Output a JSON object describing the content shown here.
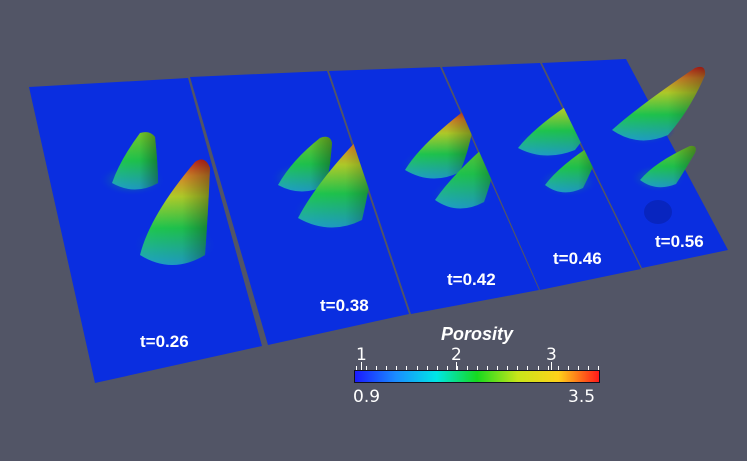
{
  "scene": {
    "background_color": "#525566",
    "field_color": "#0a2ee0",
    "panels": [
      {
        "label": "t=0.26",
        "peaks": 2
      },
      {
        "label": "t=0.38",
        "peaks": 2
      },
      {
        "label": "t=0.42",
        "peaks": 2
      },
      {
        "label": "t=0.46",
        "peaks": 2
      },
      {
        "label": "t=0.56",
        "peaks": 2
      }
    ]
  },
  "colorbar": {
    "title": "Porosity",
    "min_label": "0.9",
    "max_label": "3.5",
    "tick_labels": [
      "1",
      "2",
      "3"
    ],
    "colors": [
      "#1a1aff",
      "#1a8cff",
      "#00e6e6",
      "#16d91f",
      "#c8e61a",
      "#ffd21a",
      "#ff1a1a"
    ]
  }
}
